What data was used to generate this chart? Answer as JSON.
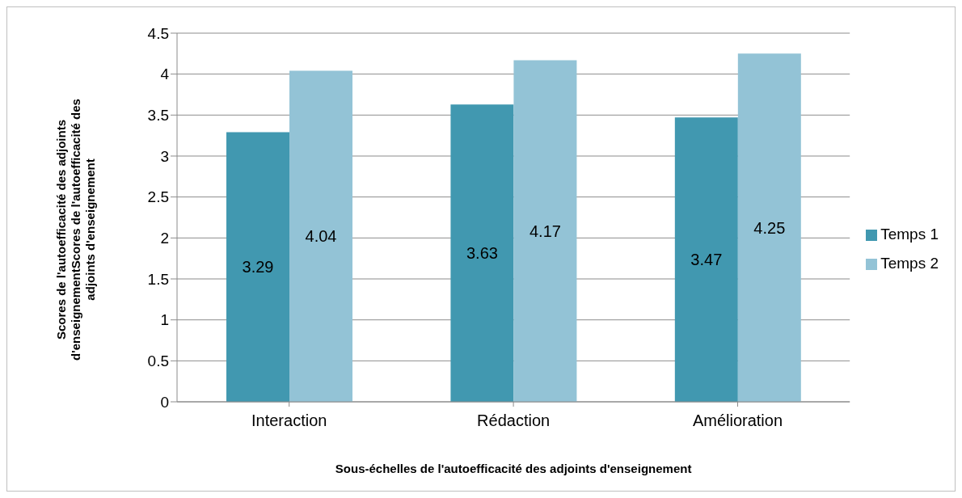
{
  "chart_data": {
    "type": "bar",
    "xlabel": "Sous-échelles de l'autoefficacité des adjoints d'enseignement",
    "ylabel": "Scores de l'autoefficacité des adjoints d'enseignementScores de l'autoefficacité des adjoints d'enseignement",
    "categories": [
      "Interaction",
      "Rédaction",
      "Amélioration"
    ],
    "series": [
      {
        "name": "Temps 1",
        "color": "#4198b0",
        "values": [
          3.29,
          3.63,
          3.47
        ]
      },
      {
        "name": "Temps 2",
        "color": "#93c3d6",
        "values": [
          4.04,
          4.17,
          4.25
        ]
      }
    ],
    "ylim": [
      0,
      4.5
    ],
    "yticks": [
      0,
      0.5,
      1,
      1.5,
      2,
      2.5,
      3,
      3.5,
      4,
      4.5
    ],
    "grid": "y",
    "legend": "right",
    "data_labels": true
  }
}
